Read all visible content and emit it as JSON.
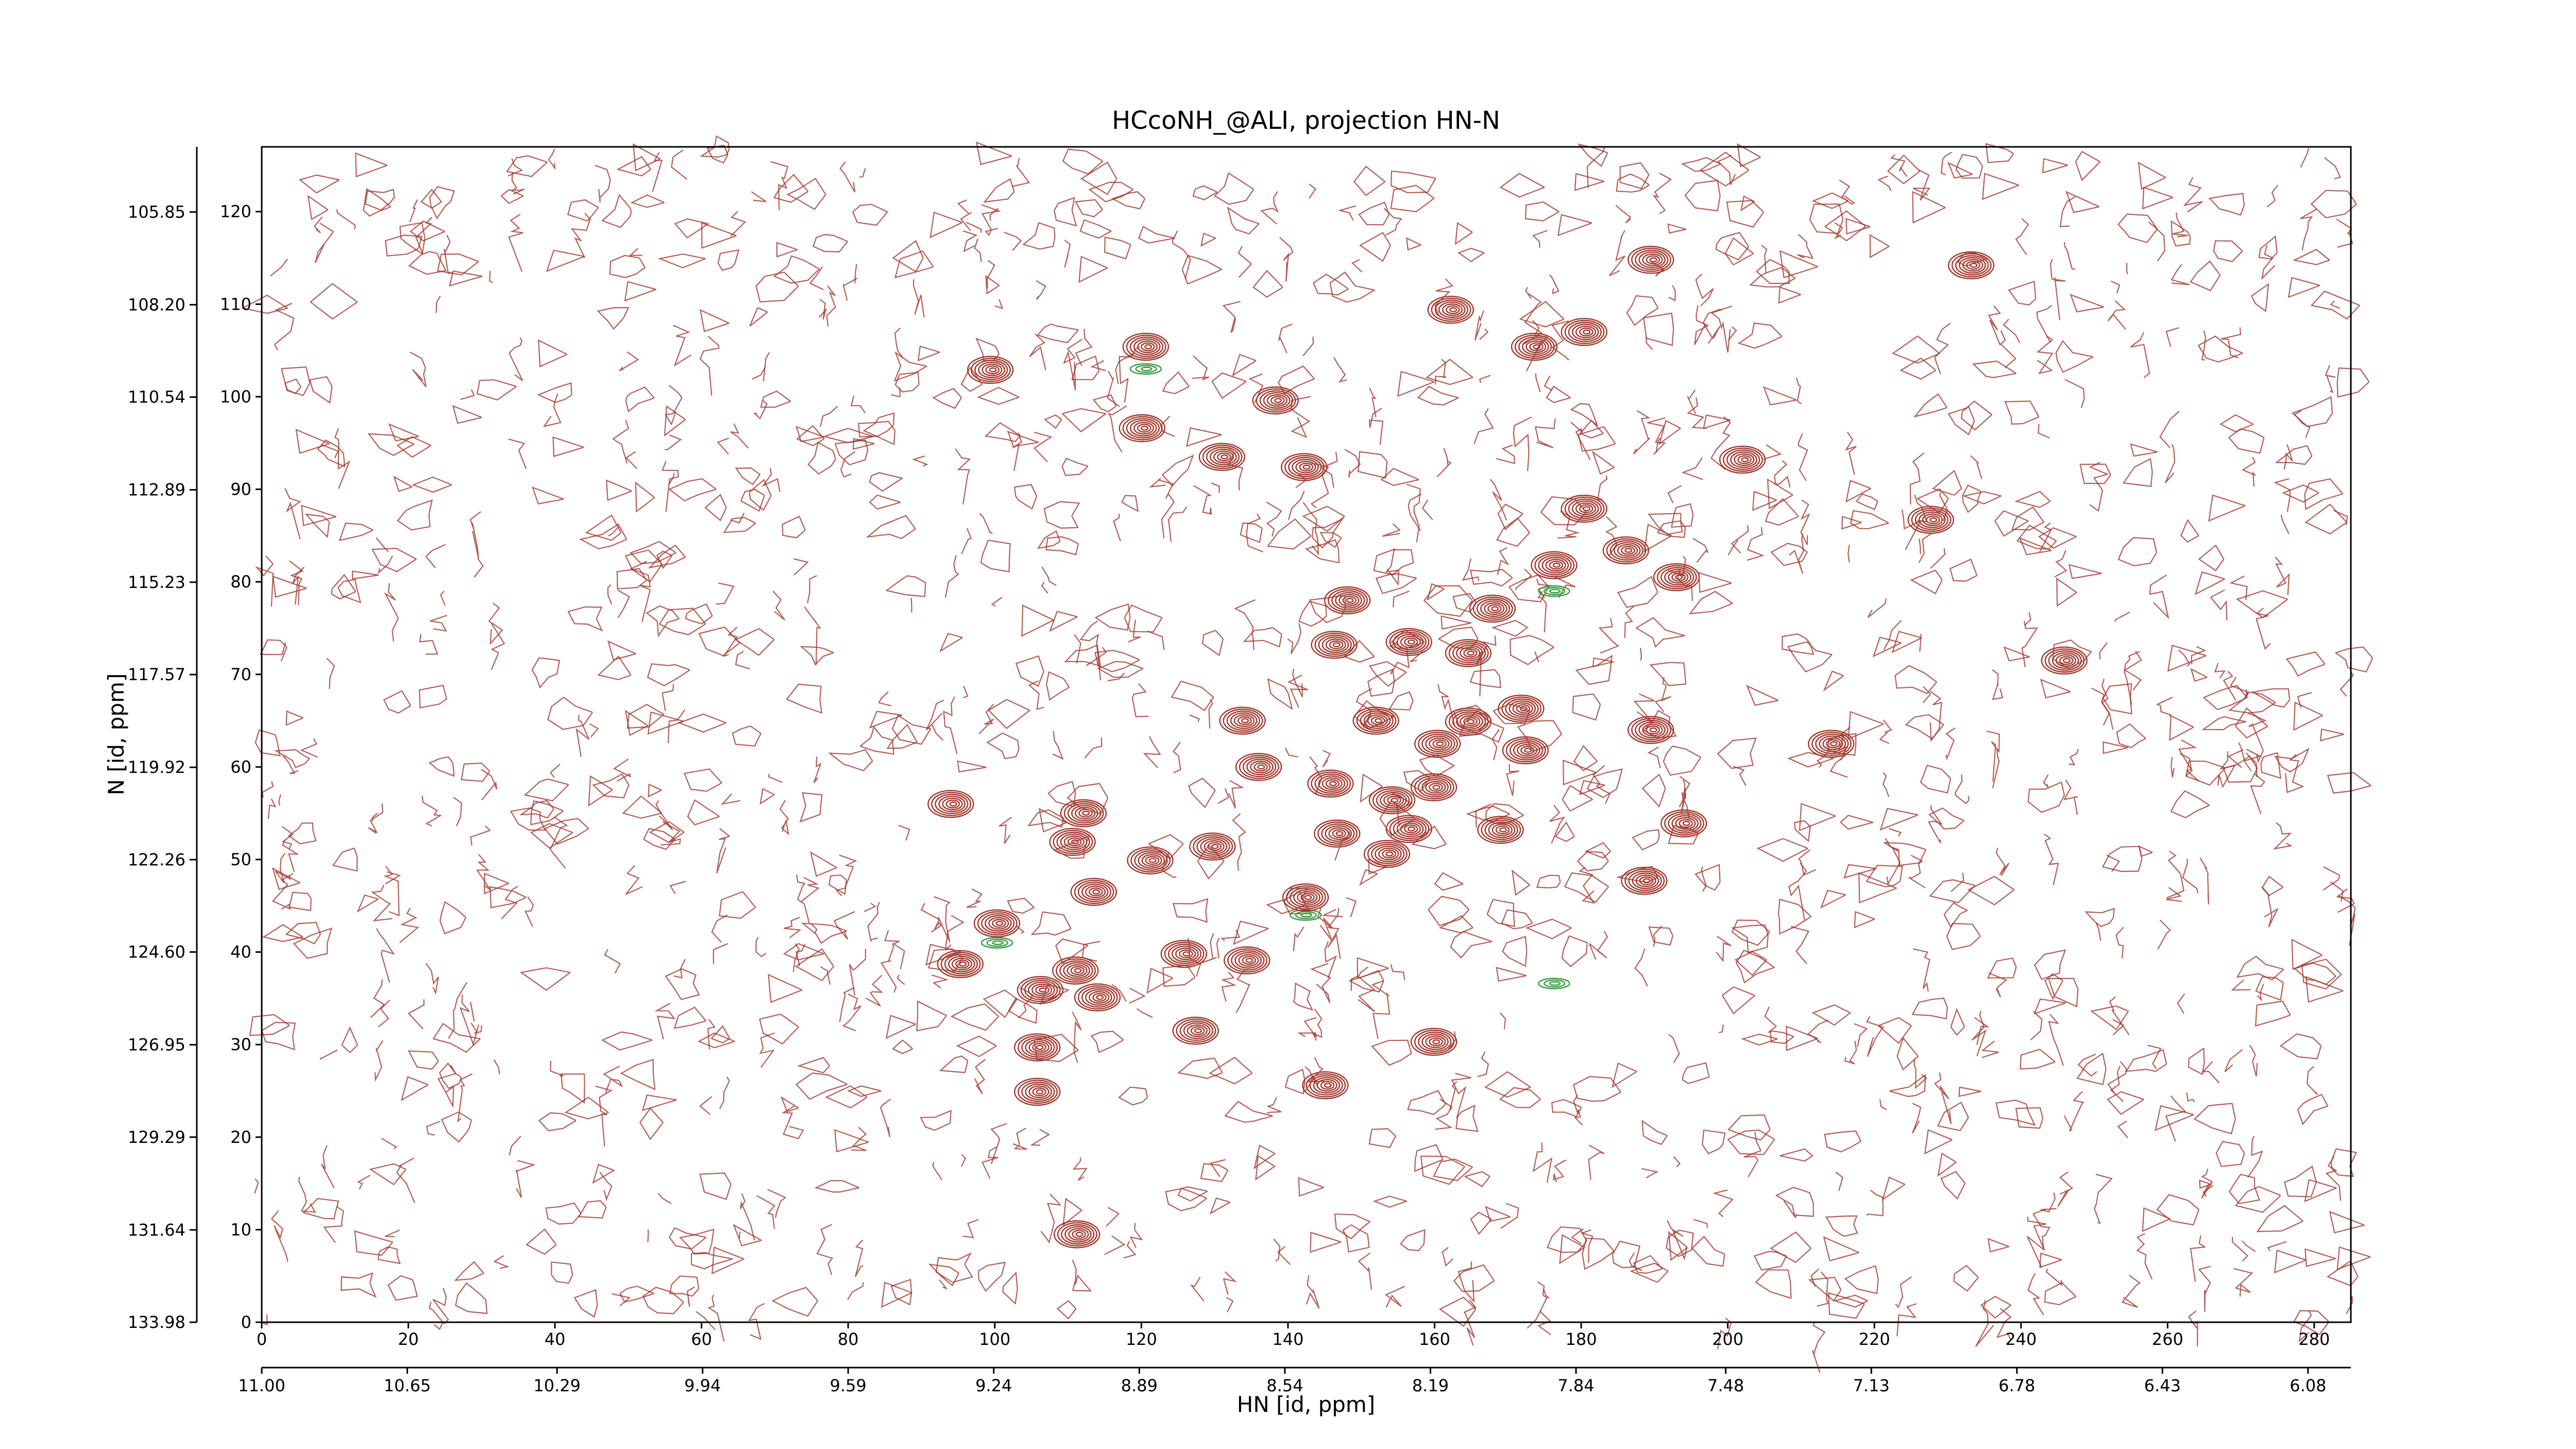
{
  "chart_data": {
    "type": "contour",
    "title": "HCcoNH_@ALI, projection HN-N",
    "x_label": "HN [id, ppm]",
    "y_label": "N [id, ppm]",
    "xlim": [
      0,
      285
    ],
    "xticks": [
      0,
      20,
      40,
      60,
      80,
      100,
      120,
      140,
      160,
      180,
      200,
      220,
      240,
      260,
      280
    ],
    "ylim": [
      0,
      127
    ],
    "yticks": [
      0,
      10,
      20,
      30,
      40,
      50,
      60,
      70,
      80,
      90,
      100,
      110,
      120
    ],
    "x2lim": [
      11.0,
      5.977
    ],
    "x2ticks": [
      {
        "value": 11.0,
        "label": "11.00"
      },
      {
        "value": 10.65,
        "label": "10.65"
      },
      {
        "value": 10.29,
        "label": "10.29"
      },
      {
        "value": 9.94,
        "label": "9.94"
      },
      {
        "value": 9.59,
        "label": "9.59"
      },
      {
        "value": 9.24,
        "label": "9.24"
      },
      {
        "value": 8.89,
        "label": "8.89"
      },
      {
        "value": 8.54,
        "label": "8.54"
      },
      {
        "value": 8.19,
        "label": "8.19"
      },
      {
        "value": 7.84,
        "label": "7.84"
      },
      {
        "value": 7.48,
        "label": "7.48"
      },
      {
        "value": 7.13,
        "label": "7.13"
      },
      {
        "value": 6.78,
        "label": "6.78"
      },
      {
        "value": 6.43,
        "label": "6.43"
      },
      {
        "value": 6.08,
        "label": "6.08"
      }
    ],
    "y2lim": [
      133.98,
      104.2
    ],
    "y2ticks": [
      {
        "value": 133.98,
        "label": "133.98"
      },
      {
        "value": 131.64,
        "label": "131.64"
      },
      {
        "value": 129.29,
        "label": "129.29"
      },
      {
        "value": 126.95,
        "label": "126.95"
      },
      {
        "value": 124.6,
        "label": "124.60"
      },
      {
        "value": 122.26,
        "label": "122.26"
      },
      {
        "value": 119.92,
        "label": "119.92"
      },
      {
        "value": 117.57,
        "label": "117.57"
      },
      {
        "value": 115.23,
        "label": "115.23"
      },
      {
        "value": 112.89,
        "label": "112.89"
      },
      {
        "value": 110.54,
        "label": "110.54"
      },
      {
        "value": 108.2,
        "label": "108.20"
      },
      {
        "value": 105.85,
        "label": "105.85"
      }
    ],
    "color": "#a0342a",
    "negative_color": "#2e9b3a",
    "contours": {
      "x": [
        99.4,
        120.6,
        120.1,
        138.3,
        131.0,
        142.2,
        162.2,
        173.6,
        180.4,
        189.5,
        233.2,
        202.0,
        180.4,
        176.3,
        186.1,
        193.0,
        227.7,
        245.9,
        148.1,
        167.9,
        156.5,
        146.3,
        164.6,
        133.8,
        152.0,
        164.6,
        171.8,
        160.4,
        172.4,
        189.5,
        214.1,
        136.0,
        94.0,
        112.1,
        145.8,
        154.2,
        159.9,
        156.5,
        146.7,
        169.0,
        194.0,
        110.6,
        121.2,
        129.7,
        153.5,
        188.6,
        113.5,
        142.4,
        100.3,
        125.8,
        134.4,
        95.3,
        106.2,
        111.0,
        114.0,
        127.4,
        105.8,
        159.9,
        105.8,
        145.1,
        111.2
      ],
      "y": [
        102.9,
        105.4,
        96.6,
        99.6,
        93.5,
        92.4,
        109.4,
        105.4,
        107.0,
        114.8,
        114.2,
        93.2,
        87.9,
        81.8,
        83.4,
        80.5,
        86.7,
        71.5,
        78.0,
        77.1,
        73.5,
        73.2,
        72.3,
        65.0,
        65.0,
        64.9,
        66.3,
        62.5,
        61.8,
        64.0,
        62.5,
        60.0,
        56.0,
        55.0,
        58.2,
        56.4,
        57.8,
        53.3,
        52.8,
        53.2,
        53.9,
        51.9,
        49.9,
        51.4,
        50.6,
        47.7,
        46.5,
        45.9,
        43.1,
        39.8,
        39.1,
        38.7,
        35.9,
        38.0,
        35.1,
        31.5,
        29.7,
        30.3,
        24.9,
        25.6,
        9.5
      ]
    },
    "negative_contours": {
      "x": [
        120.6,
        176.3,
        142.4,
        100.3,
        176.3
      ],
      "y": [
        103.0,
        79.0,
        44.0,
        41.0,
        36.6
      ]
    }
  }
}
